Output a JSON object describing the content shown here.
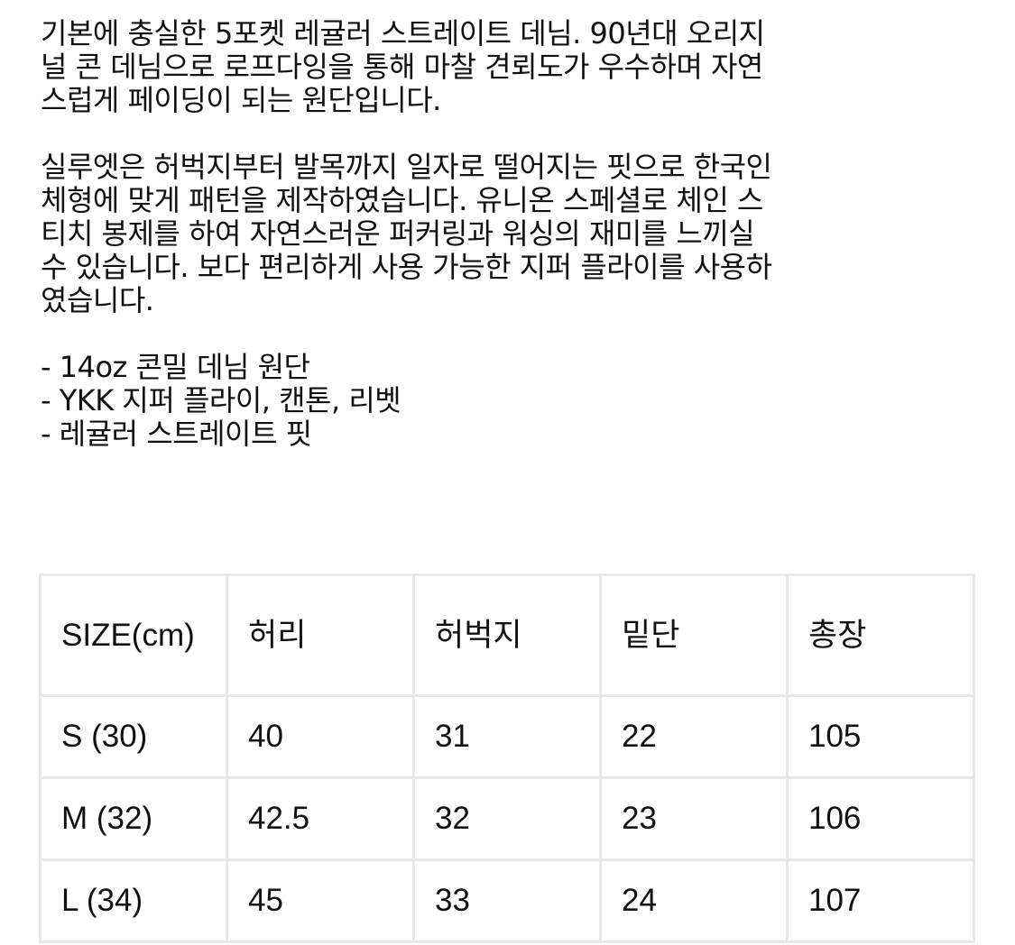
{
  "description": {
    "paragraphs": [
      [
        "기본에 충실한 5포켓 레귤러 스트레이트 데님. 90년대 오리지",
        "널 콘 데님으로 로프다잉을 통해 마찰 견뢰도가 우수하며 자연",
        "스럽게 페이딩이 되는 원단입니다."
      ],
      [
        "실루엣은 허벅지부터 발목까지 일자로 떨어지는 핏으로 한국인",
        "체형에 맞게 패턴을 제작하였습니다. 유니온 스페셜로 체인 스",
        "티치 봉제를 하여 자연스러운 퍼커링과 워싱의 재미를 느끼실",
        "수 있습니다. 보다 편리하게 사용 가능한 지퍼 플라이를 사용하",
        "였습니다."
      ],
      [
        "- 14oz 콘밀 데님 원단",
        "- YKK 지퍼 플라이, 캔톤, 리벳",
        "- 레귤러 스트레이트 핏"
      ]
    ]
  },
  "size_table": {
    "headers": [
      "SIZE(cm)",
      "허리",
      "허벅지",
      "밑단",
      "총장"
    ],
    "rows": [
      [
        "S (30)",
        "40",
        "31",
        "22",
        "105"
      ],
      [
        "M (32)",
        "42.5",
        "32",
        "23",
        "106"
      ],
      [
        "L (34)",
        "45",
        "33",
        "24",
        "107"
      ]
    ]
  }
}
